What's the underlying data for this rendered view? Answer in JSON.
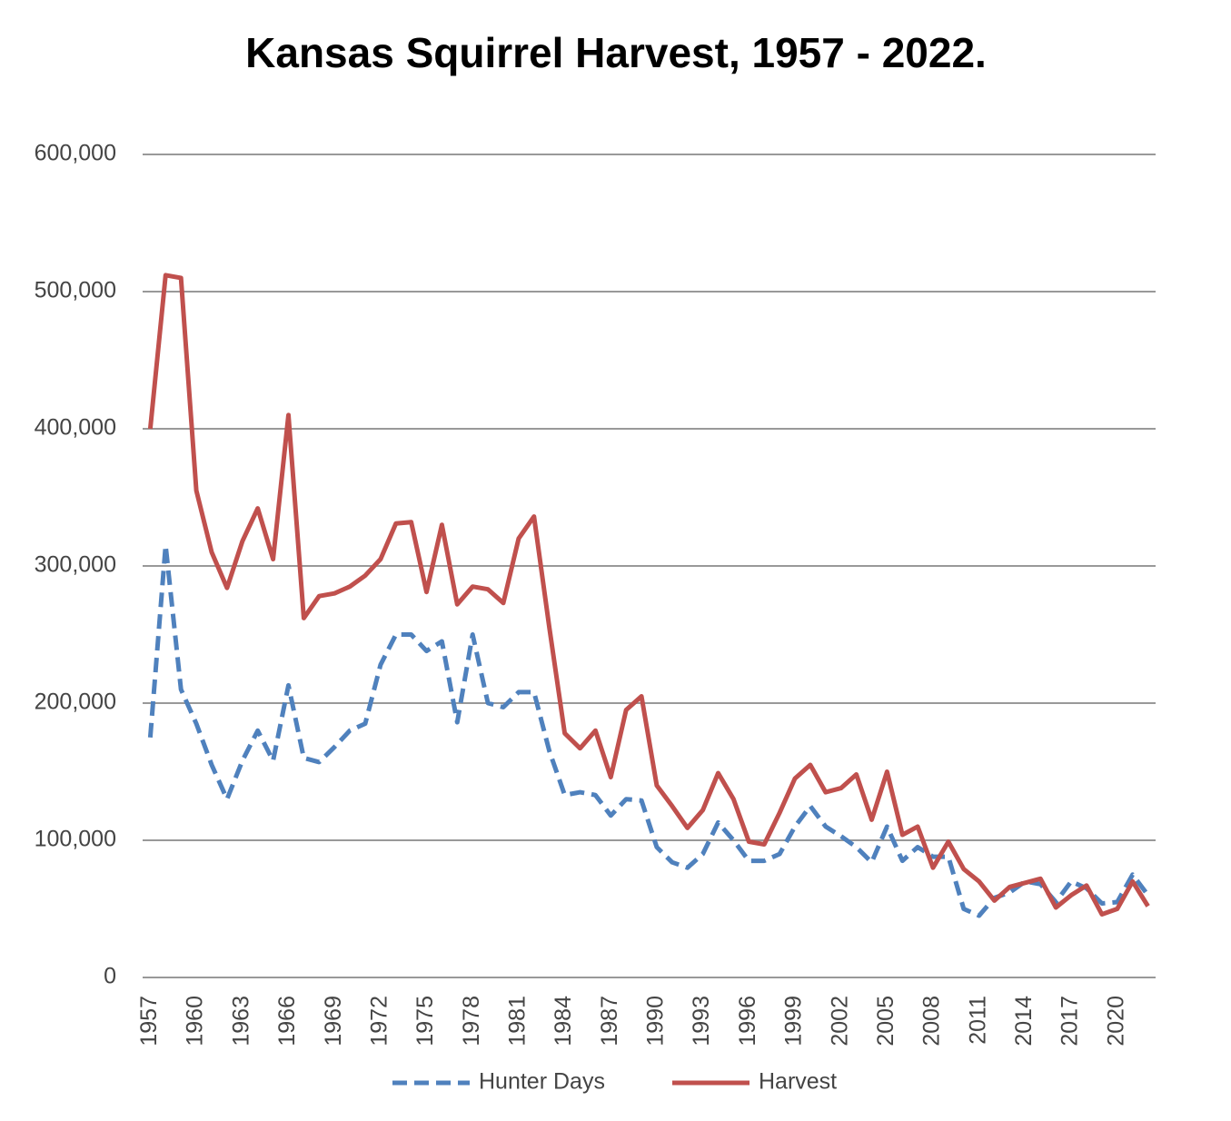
{
  "chart_data": {
    "type": "line",
    "title": "Kansas Squirrel Harvest, 1957 - 2022.",
    "categories": [
      "1957",
      null,
      null,
      "1960",
      null,
      null,
      "1963",
      null,
      null,
      "1966",
      null,
      null,
      "1969",
      null,
      null,
      "1972",
      null,
      null,
      "1975",
      null,
      null,
      "1978",
      null,
      null,
      "1981",
      null,
      null,
      "1984",
      null,
      null,
      "1987",
      null,
      null,
      "1990",
      null,
      null,
      "1993",
      null,
      null,
      "1996",
      null,
      null,
      "1999",
      null,
      null,
      "2002",
      null,
      null,
      "2005",
      null,
      null,
      "2008",
      null,
      null,
      "2011",
      null,
      null,
      "2014",
      null,
      null,
      "2017",
      null,
      null,
      "2020",
      null,
      null
    ],
    "series": [
      {
        "name": "Hunter Days",
        "color": "#4f81bd",
        "line_style": "dashed",
        "values": [
          175000,
          315000,
          210000,
          185000,
          155000,
          130000,
          158000,
          180000,
          158000,
          213000,
          160000,
          157000,
          168000,
          180000,
          185000,
          228000,
          250000,
          250000,
          238000,
          245000,
          186000,
          250000,
          200000,
          197000,
          208000,
          208000,
          165000,
          133000,
          135000,
          133000,
          118000,
          130000,
          129000,
          95000,
          84000,
          80000,
          90000,
          113000,
          100000,
          85000,
          85000,
          90000,
          110000,
          125000,
          110000,
          103000,
          95000,
          84000,
          110000,
          85000,
          95000,
          88000,
          88000,
          50000,
          45000,
          58000,
          62000,
          70000,
          68000,
          55000,
          70000,
          65000,
          54000,
          55000,
          75000,
          60000
        ]
      },
      {
        "name": "Harvest",
        "color": "#c0504d",
        "line_style": "solid",
        "values": [
          400000,
          512000,
          510000,
          355000,
          310000,
          284000,
          318000,
          342000,
          305000,
          410000,
          262000,
          278000,
          280000,
          285000,
          293000,
          305000,
          331000,
          332000,
          281000,
          330000,
          272000,
          285000,
          283000,
          273000,
          320000,
          336000,
          255000,
          178000,
          167000,
          180000,
          146000,
          195000,
          205000,
          140000,
          125000,
          109000,
          122000,
          149000,
          130000,
          99000,
          97000,
          120000,
          145000,
          155000,
          135000,
          138000,
          148000,
          115000,
          150000,
          104000,
          110000,
          80000,
          99000,
          79000,
          70000,
          56000,
          66000,
          69000,
          72000,
          51000,
          60000,
          67000,
          46000,
          50000,
          70000,
          52000
        ]
      }
    ],
    "ylim": [
      0,
      600000
    ],
    "yticks": [
      0,
      {
        "value": 100000,
        "label": "100,000"
      },
      {
        "value": 200000,
        "label": "200,000"
      },
      {
        "value": 300000,
        "label": "300,000"
      },
      {
        "value": 400000,
        "label": "400,000"
      },
      {
        "value": 500000,
        "label": "500,000"
      },
      {
        "value": 600000,
        "label": "600,000"
      }
    ],
    "grid": true,
    "legend": "bottom"
  }
}
